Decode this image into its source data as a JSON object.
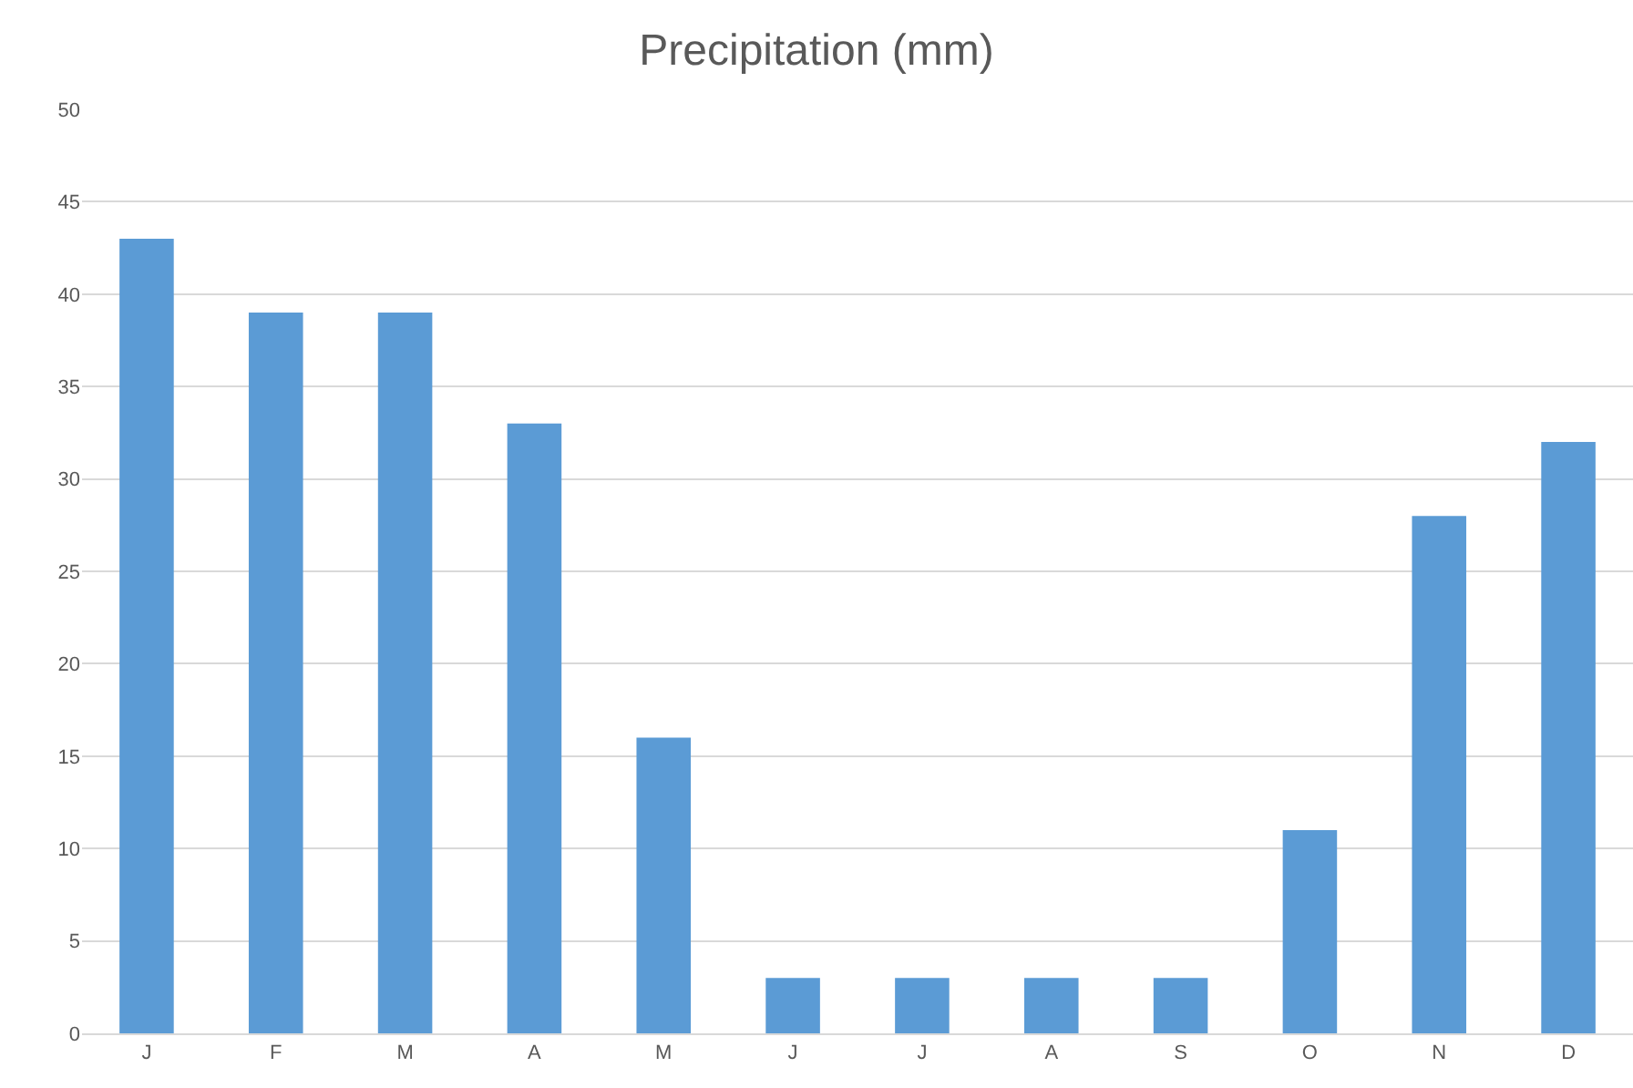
{
  "chart_data": {
    "type": "bar",
    "title": "Precipitation (mm)",
    "categories": [
      "J",
      "F",
      "M",
      "A",
      "M",
      "J",
      "J",
      "A",
      "S",
      "O",
      "N",
      "D"
    ],
    "values": [
      43,
      39,
      39,
      33,
      16,
      3,
      3,
      3,
      3,
      11,
      28,
      32
    ],
    "color": "#5b9bd5",
    "ylim": [
      0,
      50
    ],
    "yticks": [
      0,
      5,
      10,
      15,
      20,
      25,
      30,
      35,
      40,
      45,
      50
    ],
    "grid": "y"
  }
}
